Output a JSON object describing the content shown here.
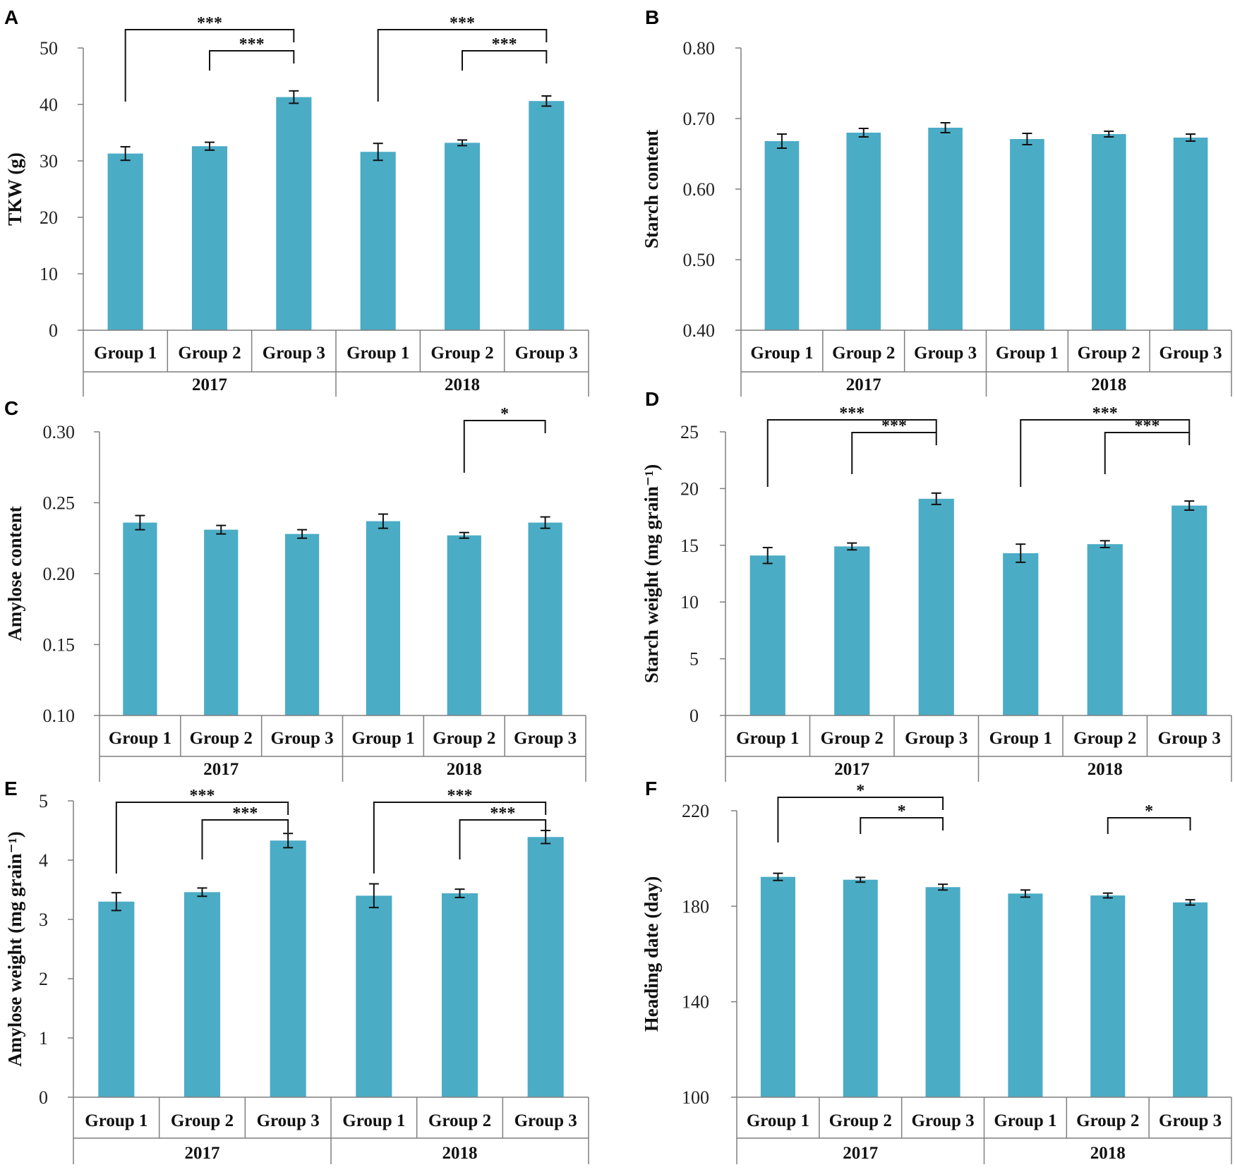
{
  "chart_data": [
    {
      "type": "bar",
      "panel": "A",
      "ylabel": "TKW (g)",
      "ylim": [
        0,
        50
      ],
      "yticks": [
        "0",
        "10",
        "20",
        "30",
        "40",
        "50"
      ],
      "yticks_values": [
        0,
        10,
        20,
        30,
        40,
        50
      ],
      "categories": [
        "Group 1",
        "Group 2",
        "Group 3",
        "Group 1",
        "Group 2",
        "Group 3"
      ],
      "years": [
        "2017",
        "2018"
      ],
      "values": [
        31.3,
        32.6,
        41.3,
        31.6,
        33.2,
        40.6
      ],
      "errors": [
        1.2,
        0.7,
        1.1,
        1.5,
        0.5,
        0.9
      ],
      "significance": [
        {
          "from": 0,
          "to": 2,
          "label": "***",
          "level": 2
        },
        {
          "from": 1,
          "to": 2,
          "label": "***",
          "level": 1
        },
        {
          "from": 3,
          "to": 5,
          "label": "***",
          "level": 2
        },
        {
          "from": 4,
          "to": 5,
          "label": "***",
          "level": 1
        }
      ]
    },
    {
      "type": "bar",
      "panel": "B",
      "ylabel": "Starch content",
      "ylim": [
        0.4,
        0.8
      ],
      "yticks": [
        "0.40",
        "0.50",
        "0.60",
        "0.70",
        "0.80"
      ],
      "yticks_values": [
        0.4,
        0.5,
        0.6,
        0.7,
        0.8
      ],
      "categories": [
        "Group 1",
        "Group 2",
        "Group 3",
        "Group 1",
        "Group 2",
        "Group 3"
      ],
      "years": [
        "2017",
        "2018"
      ],
      "values": [
        0.668,
        0.68,
        0.687,
        0.671,
        0.678,
        0.673
      ],
      "errors": [
        0.01,
        0.006,
        0.007,
        0.008,
        0.004,
        0.005
      ],
      "significance": []
    },
    {
      "type": "bar",
      "panel": "C",
      "ylabel": "Amylose content",
      "ylim": [
        0.1,
        0.3
      ],
      "yticks": [
        "0.10",
        "0.15",
        "0.20",
        "0.25",
        "0.30"
      ],
      "yticks_values": [
        0.1,
        0.15,
        0.2,
        0.25,
        0.3
      ],
      "categories": [
        "Group 1",
        "Group 2",
        "Group 3",
        "Group 1",
        "Group 2",
        "Group 3"
      ],
      "years": [
        "2017",
        "2018"
      ],
      "values": [
        0.236,
        0.231,
        0.228,
        0.237,
        0.227,
        0.236
      ],
      "errors": [
        0.005,
        0.003,
        0.003,
        0.005,
        0.002,
        0.004
      ],
      "significance": [
        {
          "from": 4,
          "to": 5,
          "label": "*",
          "level": 1
        }
      ]
    },
    {
      "type": "bar",
      "panel": "D",
      "ylabel": "Starch weight (mg grain⁻¹)",
      "ylim": [
        0,
        25
      ],
      "yticks": [
        "0",
        "5",
        "10",
        "15",
        "20",
        "25"
      ],
      "yticks_values": [
        0,
        5,
        10,
        15,
        20,
        25
      ],
      "categories": [
        "Group 1",
        "Group 2",
        "Group 3",
        "Group 1",
        "Group 2",
        "Group 3"
      ],
      "years": [
        "2017",
        "2018"
      ],
      "values": [
        14.1,
        14.9,
        19.1,
        14.3,
        15.1,
        18.5
      ],
      "errors": [
        0.7,
        0.3,
        0.5,
        0.8,
        0.3,
        0.4
      ],
      "significance": [
        {
          "from": 0,
          "to": 2,
          "label": "***",
          "level": 2
        },
        {
          "from": 1,
          "to": 2,
          "label": "***",
          "level": 1
        },
        {
          "from": 3,
          "to": 5,
          "label": "***",
          "level": 2
        },
        {
          "from": 4,
          "to": 5,
          "label": "***",
          "level": 1
        }
      ]
    },
    {
      "type": "bar",
      "panel": "E",
      "ylabel": "Amylose weight (mg grain⁻¹)",
      "ylim": [
        0,
        5
      ],
      "yticks": [
        "0",
        "1",
        "2",
        "3",
        "4",
        "5"
      ],
      "yticks_values": [
        0,
        1,
        2,
        3,
        4,
        5
      ],
      "categories": [
        "Group 1",
        "Group 2",
        "Group 3",
        "Group 1",
        "Group 2",
        "Group 3"
      ],
      "years": [
        "2017",
        "2018"
      ],
      "values": [
        3.3,
        3.46,
        4.33,
        3.4,
        3.44,
        4.39
      ],
      "errors": [
        0.15,
        0.07,
        0.12,
        0.2,
        0.07,
        0.11
      ],
      "significance": [
        {
          "from": 0,
          "to": 2,
          "label": "***",
          "level": 2
        },
        {
          "from": 1,
          "to": 2,
          "label": "***",
          "level": 1
        },
        {
          "from": 3,
          "to": 5,
          "label": "***",
          "level": 2
        },
        {
          "from": 4,
          "to": 5,
          "label": "***",
          "level": 1
        }
      ]
    },
    {
      "type": "bar",
      "panel": "F",
      "ylabel": "Heading date (day)",
      "ylim": [
        100,
        220
      ],
      "yticks": [
        "100",
        "140",
        "180",
        "220"
      ],
      "yticks_values": [
        100,
        140,
        180,
        220
      ],
      "categories": [
        "Group 1",
        "Group 2",
        "Group 3",
        "Group 1",
        "Group 2",
        "Group 3"
      ],
      "years": [
        "2017",
        "2018"
      ],
      "values": [
        192.3,
        191.1,
        188.0,
        185.3,
        184.5,
        181.6
      ],
      "errors": [
        1.5,
        1.0,
        1.2,
        1.5,
        1.0,
        1.1
      ],
      "significance": [
        {
          "from": 0,
          "to": 2,
          "label": "*",
          "level": 2
        },
        {
          "from": 1,
          "to": 2,
          "label": "*",
          "level": 1
        },
        {
          "from": 4,
          "to": 5,
          "label": "*",
          "level": 1
        }
      ]
    }
  ],
  "colors": {
    "bar": "#4bacc6",
    "axis": "#7f7f7f",
    "text": "#111111"
  }
}
